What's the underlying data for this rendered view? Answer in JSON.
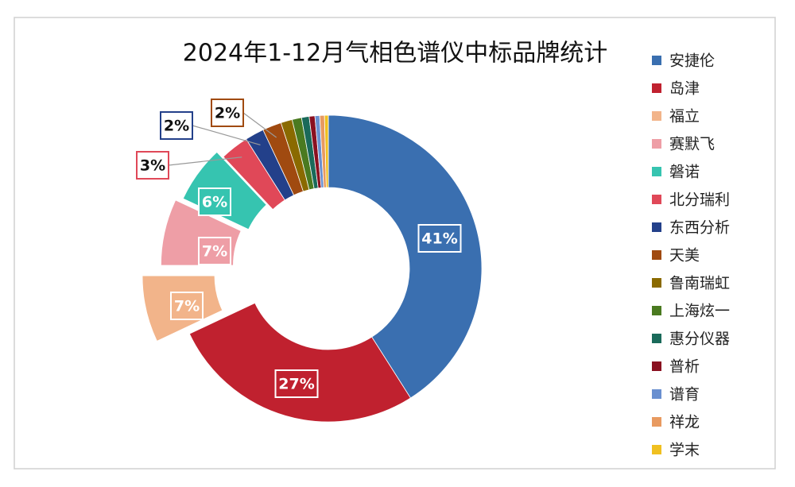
{
  "chart_data": {
    "type": "pie",
    "title": "2024年1-12月气相色谱仪中标品牌统计",
    "categories": [
      "安捷伦",
      "岛津",
      "福立",
      "赛默飞",
      "磐诺",
      "北分瑞利",
      "东西分析",
      "天美",
      "鲁南瑞虹",
      "上海炫一",
      "惠分仪器",
      "普析",
      "谱育",
      "祥龙",
      "学末"
    ],
    "values": [
      41,
      27,
      7,
      7,
      6,
      3,
      2,
      2,
      1.2,
      1,
      0.8,
      0.6,
      0.5,
      0.5,
      0.4
    ],
    "value_labels": [
      "41%",
      "27%",
      "7%",
      "7%",
      "6%",
      "3%",
      "2%",
      "2%",
      null,
      null,
      null,
      null,
      null,
      null,
      null
    ],
    "colors": [
      "#3a6fb0",
      "#c0212f",
      "#f2b48a",
      "#ee9ea6",
      "#36c4b0",
      "#e04858",
      "#23408a",
      "#a04a10",
      "#8a6a00",
      "#4a7a20",
      "#1a6a5a",
      "#8a1020",
      "#6a90d0",
      "#e89a60",
      "#f0c020"
    ],
    "legend": "right"
  }
}
